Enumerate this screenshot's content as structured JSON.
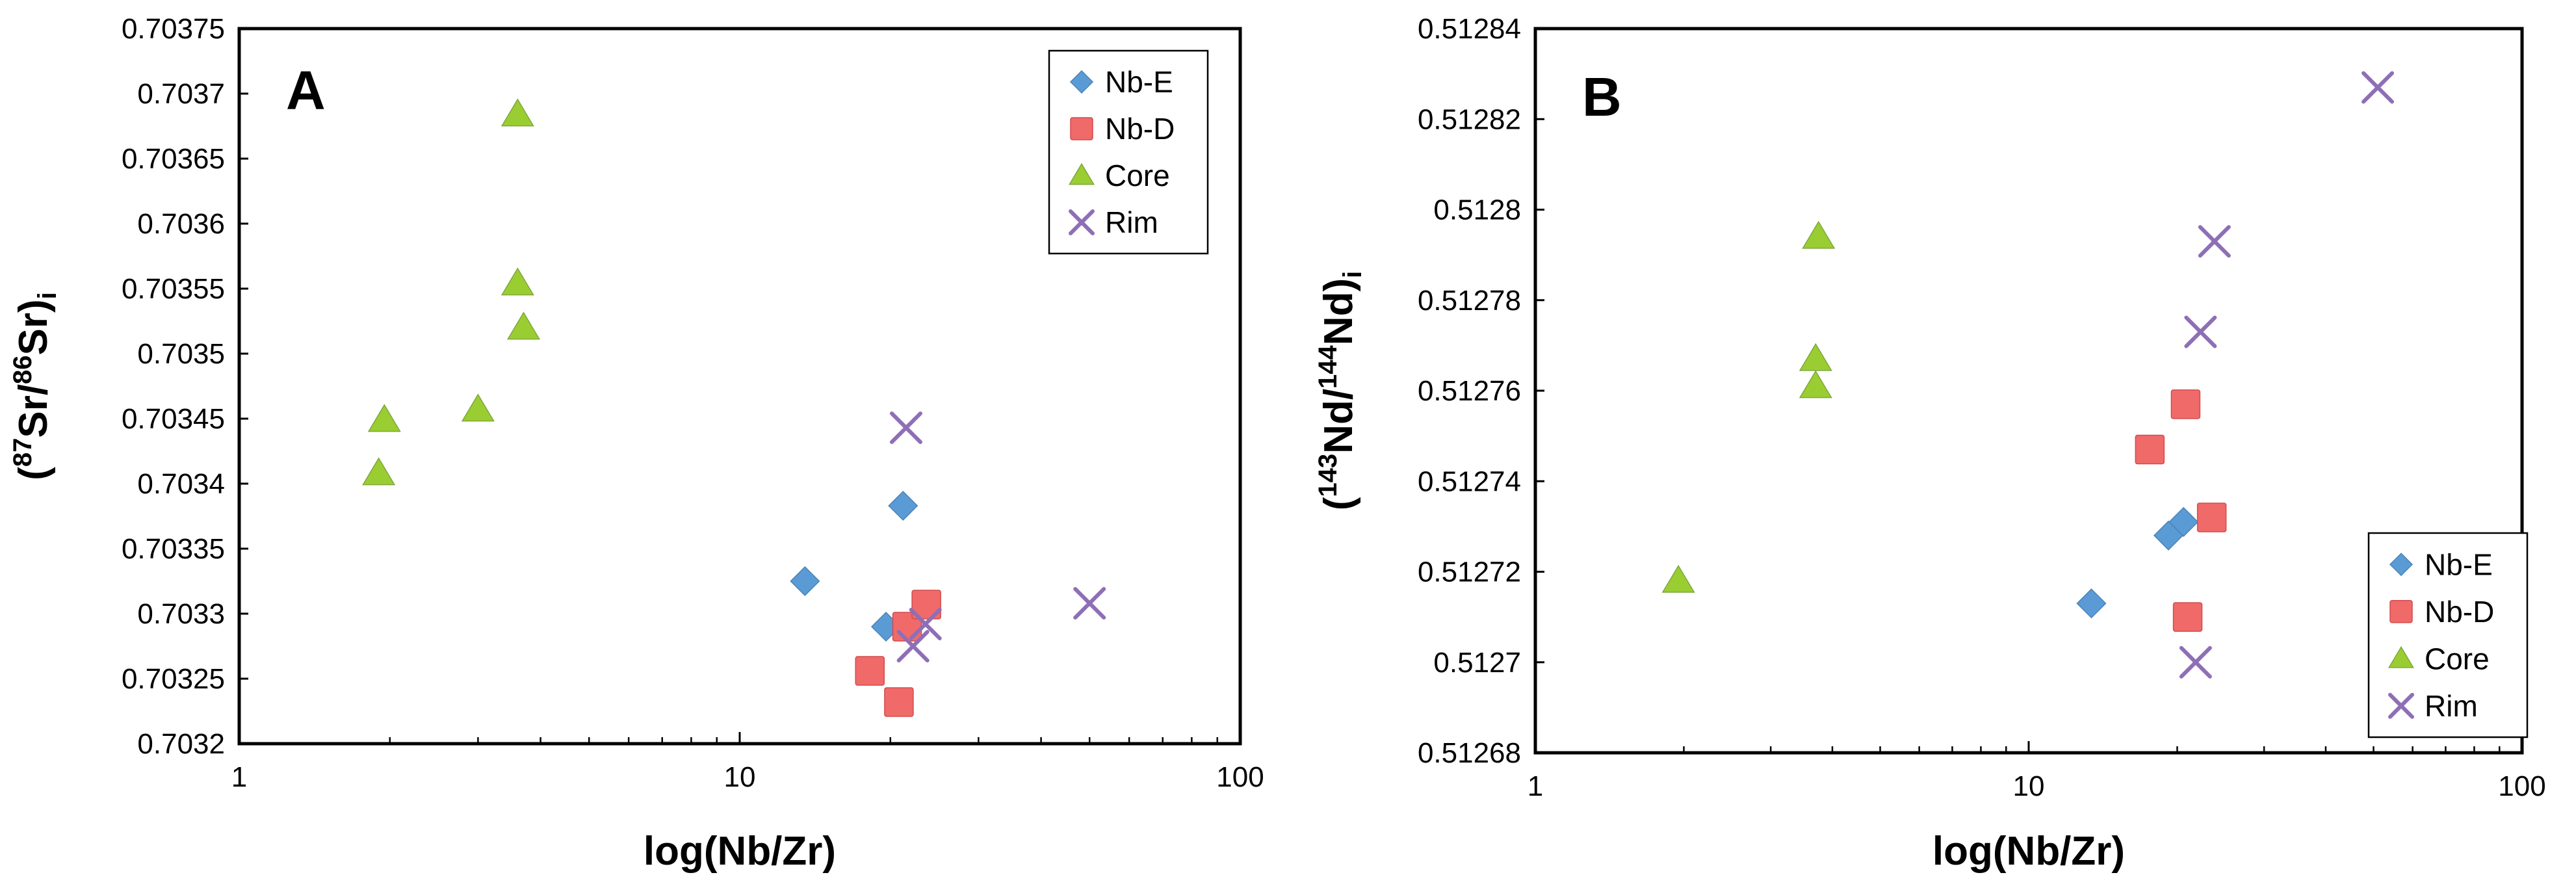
{
  "chart_data": [
    {
      "type": "scatter",
      "panel_label": "A",
      "xlabel": "log(Nb/Zr)",
      "ylabel_parts": {
        "open": "(",
        "sup1": "87",
        "mid": "Sr/",
        "sup2": "86",
        "close": "Sr)",
        "sub": "i"
      },
      "xscale": "log",
      "xlim": [
        1,
        100
      ],
      "ylim": [
        0.7032,
        0.70375
      ],
      "x_ticks": [
        "1",
        "10",
        "100"
      ],
      "y_ticks": [
        "0.7032",
        "0.70325",
        "0.7033",
        "0.70335",
        "0.7034",
        "0.70345",
        "0.7035",
        "0.70355",
        "0.7036",
        "0.70365",
        "0.7037",
        "0.70375"
      ],
      "legend_position": "top-right",
      "series": [
        {
          "name": "Nb-E",
          "marker": "diamond",
          "color": "#5B9BD5",
          "x": [
            13.5,
            19.6,
            21.2
          ],
          "y": [
            0.703325,
            0.70329,
            0.703383
          ]
        },
        {
          "name": "Nb-D",
          "marker": "square",
          "color": "#F06A6A",
          "x": [
            18.2,
            20.8,
            21.6,
            23.6
          ],
          "y": [
            0.703256,
            0.703232,
            0.70329,
            0.703307
          ]
        },
        {
          "name": "Core",
          "marker": "triangle",
          "color": "#9ACD32",
          "x": [
            1.9,
            1.95,
            3.0,
            3.6,
            3.6,
            3.7
          ],
          "y": [
            0.703408,
            0.703449,
            0.703457,
            0.703684,
            0.703554,
            0.70352
          ]
        },
        {
          "name": "Rim",
          "marker": "x",
          "color": "#8E6FB6",
          "x": [
            21.5,
            22.2,
            23.5,
            50.0
          ],
          "y": [
            0.703443,
            0.703275,
            0.703292,
            0.703308
          ]
        }
      ]
    },
    {
      "type": "scatter",
      "panel_label": "B",
      "xlabel": "log(Nb/Zr)",
      "ylabel_parts": {
        "open": "(",
        "sup1": "143",
        "mid": "Nd/",
        "sup2": "144",
        "close": "Nd)",
        "sub": "i"
      },
      "xscale": "log",
      "xlim": [
        1,
        100
      ],
      "ylim": [
        0.51268,
        0.51284
      ],
      "x_ticks": [
        "1",
        "10",
        "100"
      ],
      "y_ticks": [
        "0.51268",
        "0.5127",
        "0.51272",
        "0.51274",
        "0.51276",
        "0.51278",
        "0.5128",
        "0.51282",
        "0.51284"
      ],
      "legend_position": "bottom-right",
      "series": [
        {
          "name": "Nb-E",
          "marker": "diamond",
          "color": "#5B9BD5",
          "x": [
            13.4,
            19.2,
            20.6
          ],
          "y": [
            0.512713,
            0.512728,
            0.512731
          ]
        },
        {
          "name": "Nb-D",
          "marker": "square",
          "color": "#F06A6A",
          "x": [
            17.6,
            20.8,
            21.0,
            23.5
          ],
          "y": [
            0.512747,
            0.512757,
            0.51271,
            0.512732
          ]
        },
        {
          "name": "Core",
          "marker": "triangle",
          "color": "#9ACD32",
          "x": [
            1.95,
            3.7,
            3.7,
            3.75
          ],
          "y": [
            0.512718,
            0.512767,
            0.512761,
            0.512794
          ]
        },
        {
          "name": "Rim",
          "marker": "x",
          "color": "#8E6FB6",
          "x": [
            21.8,
            22.3,
            23.8,
            51.0
          ],
          "y": [
            0.5127,
            0.512773,
            0.512793,
            0.512827
          ]
        }
      ]
    }
  ]
}
